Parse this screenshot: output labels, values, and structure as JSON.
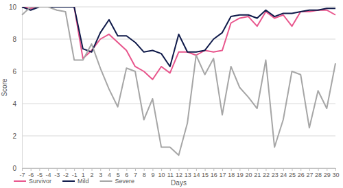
{
  "chart_data": {
    "type": "line",
    "x_label": "Days",
    "y_label": "Score",
    "categories": [
      "-7",
      "-6",
      "-5",
      "-4",
      "-3",
      "-2",
      "-1",
      "1",
      "2",
      "3",
      "4",
      "5",
      "6",
      "7",
      "8",
      "9",
      "10",
      "11",
      "12",
      "13",
      "14",
      "15",
      "16",
      "17",
      "18",
      "19",
      "20",
      "21",
      "22",
      "23",
      "24",
      "25",
      "26",
      "27",
      "28",
      "29",
      "30"
    ],
    "series": [
      {
        "name": "Survivor",
        "color": "#e8558c",
        "values": [
          10,
          9.9,
          10,
          10,
          10,
          10,
          10,
          6.8,
          7.3,
          8.0,
          8.3,
          7.8,
          7.3,
          6.3,
          6.0,
          5.5,
          6.3,
          5.9,
          7.2,
          7.2,
          7.0,
          7.3,
          7.2,
          7.3,
          9.0,
          9.3,
          9.4,
          8.8,
          9.7,
          9.3,
          9.5,
          8.8,
          9.7,
          9.7,
          9.8,
          9.8,
          9.5
        ]
      },
      {
        "name": "Mild",
        "color": "#0f1a4a",
        "values": [
          10,
          9.8,
          10,
          10,
          10,
          10,
          10,
          7.4,
          7.2,
          8.4,
          9.2,
          8.2,
          8.2,
          7.8,
          7.2,
          7.3,
          7.1,
          6.3,
          8.3,
          7.2,
          7.2,
          7.3,
          8.0,
          8.4,
          9.4,
          9.5,
          9.5,
          9.3,
          9.8,
          9.4,
          9.6,
          9.6,
          9.7,
          9.8,
          9.8,
          9.9,
          9.9
        ]
      },
      {
        "name": "Severe",
        "color": "#a6a6a6",
        "values": [
          9.5,
          10,
          10,
          10,
          9.8,
          9.7,
          6.7,
          6.7,
          7.7,
          6.2,
          4.9,
          3.8,
          6.2,
          6.0,
          3.0,
          4.3,
          1.3,
          1.3,
          0.8,
          2.8,
          7.0,
          5.8,
          6.8,
          3.3,
          6.3,
          5.0,
          4.4,
          3.7,
          6.7,
          1.3,
          3.0,
          6.0,
          5.8,
          2.5,
          4.8,
          3.7,
          6.5
        ]
      }
    ],
    "ylim": [
      0,
      10
    ],
    "yticks": [
      0,
      2,
      4,
      6,
      8,
      10
    ],
    "grid": true,
    "legend": "bottom"
  }
}
